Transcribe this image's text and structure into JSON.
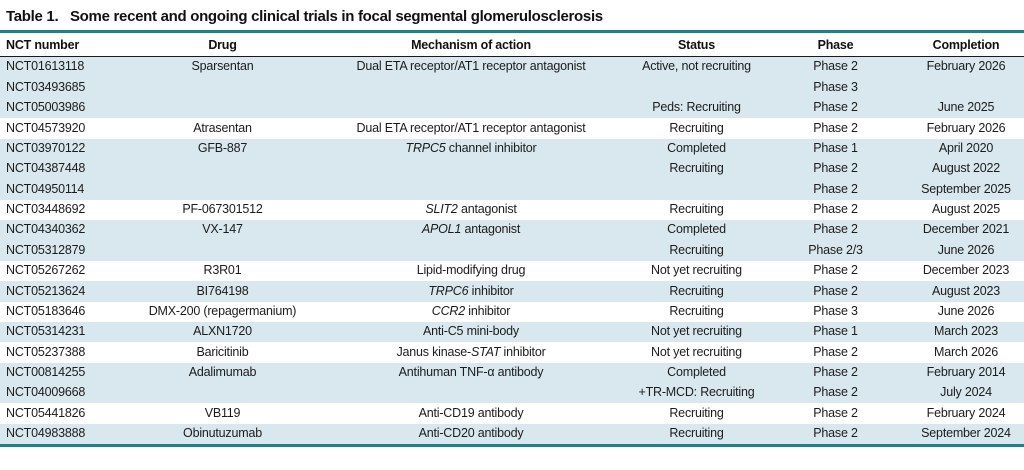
{
  "title": {
    "label": "Table 1.",
    "text": "Some recent and ongoing clinical trials in focal segmental glomerulosclerosis"
  },
  "colors": {
    "accent_teal": "#1f7f8e",
    "row_shade": "#d9e8ee",
    "header_rule": "#1a1a1a",
    "text": "#1c1c1c"
  },
  "columns": [
    {
      "key": "nct",
      "label": "NCT number",
      "align": "left"
    },
    {
      "key": "drug",
      "label": "Drug",
      "align": "center"
    },
    {
      "key": "mechanism",
      "label": "Mechanism of action",
      "align": "center"
    },
    {
      "key": "status",
      "label": "Status",
      "align": "center"
    },
    {
      "key": "phase",
      "label": "Phase",
      "align": "center"
    },
    {
      "key": "completion",
      "label": "Completion",
      "align": "center"
    }
  ],
  "rows": [
    {
      "nct": "NCT01613118",
      "drug": "Sparsentan",
      "mechanism": "Dual ETA receptor/AT1 receptor antagonist",
      "status": "Active, not recruiting",
      "phase": "Phase 2",
      "completion": "February 2026",
      "shaded": true
    },
    {
      "nct": "NCT03493685",
      "drug": "",
      "mechanism": "",
      "status": "",
      "phase": "Phase 3",
      "completion": "",
      "shaded": true
    },
    {
      "nct": "NCT05003986",
      "drug": "",
      "mechanism": "",
      "status": "Peds: Recruiting",
      "phase": "Phase 2",
      "completion": "June 2025",
      "shaded": true
    },
    {
      "nct": "NCT04573920",
      "drug": "Atrasentan",
      "mechanism": "Dual ETA receptor/AT1 receptor antagonist",
      "status": "Recruiting",
      "phase": "Phase 2",
      "completion": "February 2026",
      "shaded": false
    },
    {
      "nct": "NCT03970122",
      "drug": "GFB-887",
      "mechanism": "*TRPC5* channel inhibitor",
      "status": "Completed",
      "phase": "Phase 1",
      "completion": "April 2020",
      "shaded": true
    },
    {
      "nct": "NCT04387448",
      "drug": "",
      "mechanism": "",
      "status": "Recruiting",
      "phase": "Phase 2",
      "completion": "August 2022",
      "shaded": true
    },
    {
      "nct": "NCT04950114",
      "drug": "",
      "mechanism": "",
      "status": "",
      "phase": "Phase 2",
      "completion": "September 2025",
      "shaded": true
    },
    {
      "nct": "NCT03448692",
      "drug": "PF-067301512",
      "mechanism": "*SLIT2* antagonist",
      "status": "Recruiting",
      "phase": "Phase 2",
      "completion": "August 2025",
      "shaded": false
    },
    {
      "nct": "NCT04340362",
      "drug": "VX-147",
      "mechanism": "*APOL1* antagonist",
      "status": "Completed",
      "phase": "Phase 2",
      "completion": "December 2021",
      "shaded": true
    },
    {
      "nct": "NCT05312879",
      "drug": "",
      "mechanism": "",
      "status": "Recruiting",
      "phase": "Phase 2/3",
      "completion": "June 2026",
      "shaded": true
    },
    {
      "nct": "NCT05267262",
      "drug": "R3R01",
      "mechanism": "Lipid-modifying drug",
      "status": "Not yet recruiting",
      "phase": "Phase 2",
      "completion": "December 2023",
      "shaded": false
    },
    {
      "nct": "NCT05213624",
      "drug": "BI764198",
      "mechanism": "*TRPC6* inhibitor",
      "status": "Recruiting",
      "phase": "Phase 2",
      "completion": "August 2023",
      "shaded": true
    },
    {
      "nct": "NCT05183646",
      "drug": "DMX-200 (repagermanium)",
      "mechanism": "*CCR2* inhibitor",
      "status": "Recruiting",
      "phase": "Phase 3",
      "completion": "June 2026",
      "shaded": false
    },
    {
      "nct": "NCT05314231",
      "drug": "ALXN1720",
      "mechanism": "Anti-C5 mini-body",
      "status": "Not yet recruiting",
      "phase": "Phase 1",
      "completion": "March 2023",
      "shaded": true
    },
    {
      "nct": "NCT05237388",
      "drug": "Baricitinib",
      "mechanism": "Janus kinase-*STAT* inhibitor",
      "status": "Not yet recruiting",
      "phase": "Phase 2",
      "completion": "March 2026",
      "shaded": false
    },
    {
      "nct": "NCT00814255",
      "drug": "Adalimumab",
      "mechanism": "Antihuman TNF-α antibody",
      "status": "Completed",
      "phase": "Phase 2",
      "completion": "February 2014",
      "shaded": true
    },
    {
      "nct": "NCT04009668",
      "drug": "",
      "mechanism": "",
      "status": "+TR-MCD: Recruiting",
      "phase": "Phase 2",
      "completion": "July 2024",
      "shaded": true
    },
    {
      "nct": "NCT05441826",
      "drug": "VB119",
      "mechanism": "Anti-CD19 antibody",
      "status": "Recruiting",
      "phase": "Phase 2",
      "completion": "February 2024",
      "shaded": false
    },
    {
      "nct": "NCT04983888",
      "drug": "Obinutuzumab",
      "mechanism": "Anti-CD20 antibody",
      "status": "Recruiting",
      "phase": "Phase 2",
      "completion": "September 2024",
      "shaded": true
    }
  ]
}
